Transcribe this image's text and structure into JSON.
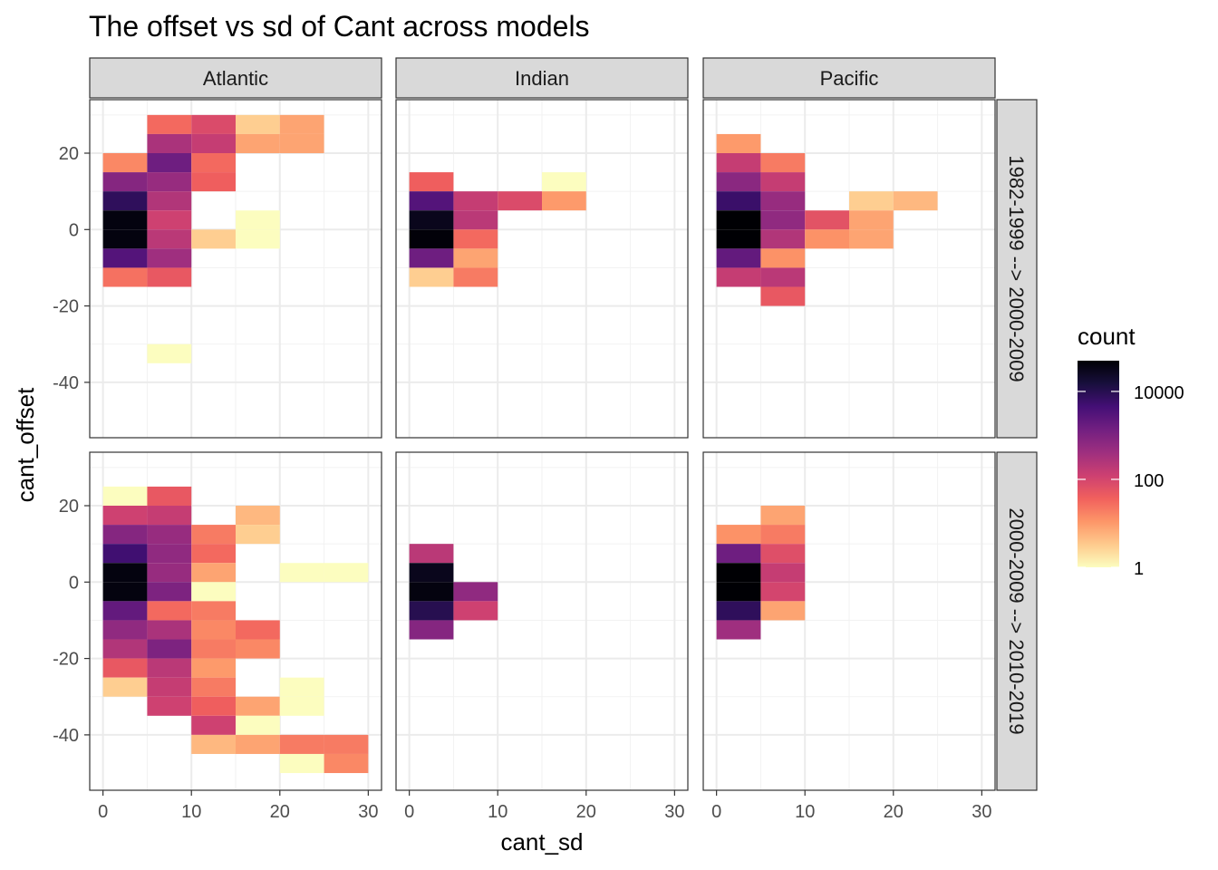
{
  "chart_data": {
    "type": "heatmap",
    "title": "The offset vs sd of Cant across models",
    "xlabel": "cant_sd",
    "ylabel": "cant_offset",
    "xlim": [
      -1.5,
      31.5
    ],
    "ylim": [
      -54.5,
      34
    ],
    "x_ticks": [
      0,
      10,
      20,
      30
    ],
    "y_ticks": [
      20,
      0,
      -20,
      -40
    ],
    "bin_width": 5,
    "grid": true,
    "facet_columns": [
      "Atlantic",
      "Indian",
      "Pacific"
    ],
    "facet_rows": [
      "1982-1999 --> 2000-2009",
      "2000-2009 --> 2010-2019"
    ],
    "legend": {
      "title": "count",
      "placement": "right",
      "scale": "log10",
      "range": [
        1,
        50000
      ],
      "breaks": [
        1,
        100,
        10000
      ],
      "break_labels": [
        "1",
        "100",
        "10000"
      ],
      "palette": [
        "#fcfdbf",
        "#feca8d",
        "#fd9668",
        "#f1605d",
        "#cd4071",
        "#9e2f7f",
        "#721f81",
        "#440f76",
        "#180f3d",
        "#000004"
      ]
    },
    "panels": [
      {
        "column": "Atlantic",
        "row": "1982-1999 --> 2000-2009",
        "tiles": [
          {
            "x": 7.5,
            "y": 27.5,
            "count": 30
          },
          {
            "x": 12.5,
            "y": 27.5,
            "count": 80
          },
          {
            "x": 17.5,
            "y": 27.5,
            "count": 3
          },
          {
            "x": 22.5,
            "y": 27.5,
            "count": 8
          },
          {
            "x": 7.5,
            "y": 22.5,
            "count": 300
          },
          {
            "x": 12.5,
            "y": 22.5,
            "count": 150
          },
          {
            "x": 17.5,
            "y": 22.5,
            "count": 8
          },
          {
            "x": 22.5,
            "y": 22.5,
            "count": 8
          },
          {
            "x": 2.5,
            "y": 17.5,
            "count": 15
          },
          {
            "x": 7.5,
            "y": 17.5,
            "count": 1500
          },
          {
            "x": 12.5,
            "y": 17.5,
            "count": 30
          },
          {
            "x": 2.5,
            "y": 12.5,
            "count": 800
          },
          {
            "x": 7.5,
            "y": 12.5,
            "count": 500
          },
          {
            "x": 12.5,
            "y": 12.5,
            "count": 40
          },
          {
            "x": 2.5,
            "y": 7.5,
            "count": 8000
          },
          {
            "x": 7.5,
            "y": 7.5,
            "count": 250
          },
          {
            "x": 2.5,
            "y": 2.5,
            "count": 40000
          },
          {
            "x": 7.5,
            "y": 2.5,
            "count": 120
          },
          {
            "x": 17.5,
            "y": 2.5,
            "count": 1
          },
          {
            "x": 2.5,
            "y": -2.5,
            "count": 40000
          },
          {
            "x": 7.5,
            "y": -2.5,
            "count": 200
          },
          {
            "x": 12.5,
            "y": -2.5,
            "count": 3
          },
          {
            "x": 17.5,
            "y": -2.5,
            "count": 1
          },
          {
            "x": 2.5,
            "y": -7.5,
            "count": 3000
          },
          {
            "x": 7.5,
            "y": -7.5,
            "count": 400
          },
          {
            "x": 2.5,
            "y": -12.5,
            "count": 25
          },
          {
            "x": 7.5,
            "y": -12.5,
            "count": 50
          },
          {
            "x": 7.5,
            "y": -32.5,
            "count": 1
          }
        ]
      },
      {
        "column": "Indian",
        "row": "1982-1999 --> 2000-2009",
        "tiles": [
          {
            "x": 2.5,
            "y": 12.5,
            "count": 40
          },
          {
            "x": 17.5,
            "y": 12.5,
            "count": 1
          },
          {
            "x": 2.5,
            "y": 7.5,
            "count": 3000
          },
          {
            "x": 7.5,
            "y": 7.5,
            "count": 150
          },
          {
            "x": 12.5,
            "y": 7.5,
            "count": 80
          },
          {
            "x": 17.5,
            "y": 7.5,
            "count": 10
          },
          {
            "x": 2.5,
            "y": 2.5,
            "count": 30000
          },
          {
            "x": 7.5,
            "y": 2.5,
            "count": 200
          },
          {
            "x": 2.5,
            "y": -2.5,
            "count": 45000
          },
          {
            "x": 7.5,
            "y": -2.5,
            "count": 30
          },
          {
            "x": 2.5,
            "y": -7.5,
            "count": 1500
          },
          {
            "x": 7.5,
            "y": -7.5,
            "count": 8
          },
          {
            "x": 2.5,
            "y": -12.5,
            "count": 3
          },
          {
            "x": 7.5,
            "y": -12.5,
            "count": 20
          }
        ]
      },
      {
        "column": "Pacific",
        "row": "1982-1999 --> 2000-2009",
        "tiles": [
          {
            "x": 2.5,
            "y": 22.5,
            "count": 10
          },
          {
            "x": 2.5,
            "y": 17.5,
            "count": 150
          },
          {
            "x": 7.5,
            "y": 17.5,
            "count": 20
          },
          {
            "x": 2.5,
            "y": 12.5,
            "count": 700
          },
          {
            "x": 7.5,
            "y": 12.5,
            "count": 150
          },
          {
            "x": 2.5,
            "y": 7.5,
            "count": 6000
          },
          {
            "x": 7.5,
            "y": 7.5,
            "count": 500
          },
          {
            "x": 17.5,
            "y": 7.5,
            "count": 3
          },
          {
            "x": 22.5,
            "y": 7.5,
            "count": 5
          },
          {
            "x": 2.5,
            "y": 2.5,
            "count": 50000
          },
          {
            "x": 7.5,
            "y": 2.5,
            "count": 600
          },
          {
            "x": 12.5,
            "y": 2.5,
            "count": 60
          },
          {
            "x": 17.5,
            "y": 2.5,
            "count": 8
          },
          {
            "x": 2.5,
            "y": -2.5,
            "count": 60000
          },
          {
            "x": 7.5,
            "y": -2.5,
            "count": 250
          },
          {
            "x": 12.5,
            "y": -2.5,
            "count": 12
          },
          {
            "x": 17.5,
            "y": -2.5,
            "count": 8
          },
          {
            "x": 2.5,
            "y": -7.5,
            "count": 2000
          },
          {
            "x": 7.5,
            "y": -7.5,
            "count": 12
          },
          {
            "x": 2.5,
            "y": -12.5,
            "count": 150
          },
          {
            "x": 7.5,
            "y": -12.5,
            "count": 200
          },
          {
            "x": 7.5,
            "y": -17.5,
            "count": 50
          }
        ]
      },
      {
        "column": "Atlantic",
        "row": "2000-2009 --> 2010-2019",
        "tiles": [
          {
            "x": 2.5,
            "y": 22.5,
            "count": 1
          },
          {
            "x": 7.5,
            "y": 22.5,
            "count": 50
          },
          {
            "x": 2.5,
            "y": 17.5,
            "count": 120
          },
          {
            "x": 7.5,
            "y": 17.5,
            "count": 150
          },
          {
            "x": 17.5,
            "y": 17.5,
            "count": 5
          },
          {
            "x": 2.5,
            "y": 12.5,
            "count": 800
          },
          {
            "x": 7.5,
            "y": 12.5,
            "count": 500
          },
          {
            "x": 12.5,
            "y": 12.5,
            "count": 20
          },
          {
            "x": 17.5,
            "y": 12.5,
            "count": 3
          },
          {
            "x": 2.5,
            "y": 7.5,
            "count": 5000
          },
          {
            "x": 7.5,
            "y": 7.5,
            "count": 600
          },
          {
            "x": 12.5,
            "y": 7.5,
            "count": 30
          },
          {
            "x": 2.5,
            "y": 2.5,
            "count": 40000
          },
          {
            "x": 7.5,
            "y": 2.5,
            "count": 500
          },
          {
            "x": 12.5,
            "y": 2.5,
            "count": 8
          },
          {
            "x": 22.5,
            "y": 2.5,
            "count": 1
          },
          {
            "x": 27.5,
            "y": 2.5,
            "count": 1
          },
          {
            "x": 2.5,
            "y": -2.5,
            "count": 40000
          },
          {
            "x": 7.5,
            "y": -2.5,
            "count": 1000
          },
          {
            "x": 12.5,
            "y": -2.5,
            "count": 1
          },
          {
            "x": 2.5,
            "y": -7.5,
            "count": 2000
          },
          {
            "x": 7.5,
            "y": -7.5,
            "count": 30
          },
          {
            "x": 12.5,
            "y": -7.5,
            "count": 20
          },
          {
            "x": 2.5,
            "y": -12.5,
            "count": 600
          },
          {
            "x": 7.5,
            "y": -12.5,
            "count": 300
          },
          {
            "x": 12.5,
            "y": -12.5,
            "count": 15
          },
          {
            "x": 17.5,
            "y": -12.5,
            "count": 30
          },
          {
            "x": 2.5,
            "y": -17.5,
            "count": 250
          },
          {
            "x": 7.5,
            "y": -17.5,
            "count": 1000
          },
          {
            "x": 12.5,
            "y": -17.5,
            "count": 20
          },
          {
            "x": 17.5,
            "y": -17.5,
            "count": 15
          },
          {
            "x": 2.5,
            "y": -22.5,
            "count": 50
          },
          {
            "x": 7.5,
            "y": -22.5,
            "count": 200
          },
          {
            "x": 12.5,
            "y": -22.5,
            "count": 10
          },
          {
            "x": 2.5,
            "y": -27.5,
            "count": 3
          },
          {
            "x": 7.5,
            "y": -27.5,
            "count": 150
          },
          {
            "x": 12.5,
            "y": -27.5,
            "count": 20
          },
          {
            "x": 22.5,
            "y": -27.5,
            "count": 1
          },
          {
            "x": 7.5,
            "y": -32.5,
            "count": 120
          },
          {
            "x": 12.5,
            "y": -32.5,
            "count": 40
          },
          {
            "x": 17.5,
            "y": -32.5,
            "count": 8
          },
          {
            "x": 22.5,
            "y": -32.5,
            "count": 1
          },
          {
            "x": 12.5,
            "y": -37.5,
            "count": 120
          },
          {
            "x": 17.5,
            "y": -37.5,
            "count": 1
          },
          {
            "x": 12.5,
            "y": -42.5,
            "count": 5
          },
          {
            "x": 17.5,
            "y": -42.5,
            "count": 8
          },
          {
            "x": 22.5,
            "y": -42.5,
            "count": 20
          },
          {
            "x": 27.5,
            "y": -42.5,
            "count": 20
          },
          {
            "x": 22.5,
            "y": -47.5,
            "count": 1
          },
          {
            "x": 27.5,
            "y": -47.5,
            "count": 15
          }
        ]
      },
      {
        "column": "Indian",
        "row": "2000-2009 --> 2010-2019",
        "tiles": [
          {
            "x": 2.5,
            "y": 7.5,
            "count": 200
          },
          {
            "x": 2.5,
            "y": 2.5,
            "count": 30000
          },
          {
            "x": 2.5,
            "y": -2.5,
            "count": 40000
          },
          {
            "x": 7.5,
            "y": -2.5,
            "count": 600
          },
          {
            "x": 2.5,
            "y": -7.5,
            "count": 10000
          },
          {
            "x": 7.5,
            "y": -7.5,
            "count": 120
          },
          {
            "x": 2.5,
            "y": -12.5,
            "count": 800
          }
        ]
      },
      {
        "column": "Pacific",
        "row": "2000-2009 --> 2010-2019",
        "tiles": [
          {
            "x": 7.5,
            "y": 17.5,
            "count": 8
          },
          {
            "x": 2.5,
            "y": 12.5,
            "count": 12
          },
          {
            "x": 7.5,
            "y": 12.5,
            "count": 20
          },
          {
            "x": 2.5,
            "y": 7.5,
            "count": 1500
          },
          {
            "x": 7.5,
            "y": 7.5,
            "count": 70
          },
          {
            "x": 2.5,
            "y": 2.5,
            "count": 50000
          },
          {
            "x": 7.5,
            "y": 2.5,
            "count": 150
          },
          {
            "x": 2.5,
            "y": -2.5,
            "count": 60000
          },
          {
            "x": 7.5,
            "y": -2.5,
            "count": 100
          },
          {
            "x": 2.5,
            "y": -7.5,
            "count": 8000
          },
          {
            "x": 7.5,
            "y": -7.5,
            "count": 8
          },
          {
            "x": 2.5,
            "y": -12.5,
            "count": 400
          }
        ]
      }
    ]
  }
}
